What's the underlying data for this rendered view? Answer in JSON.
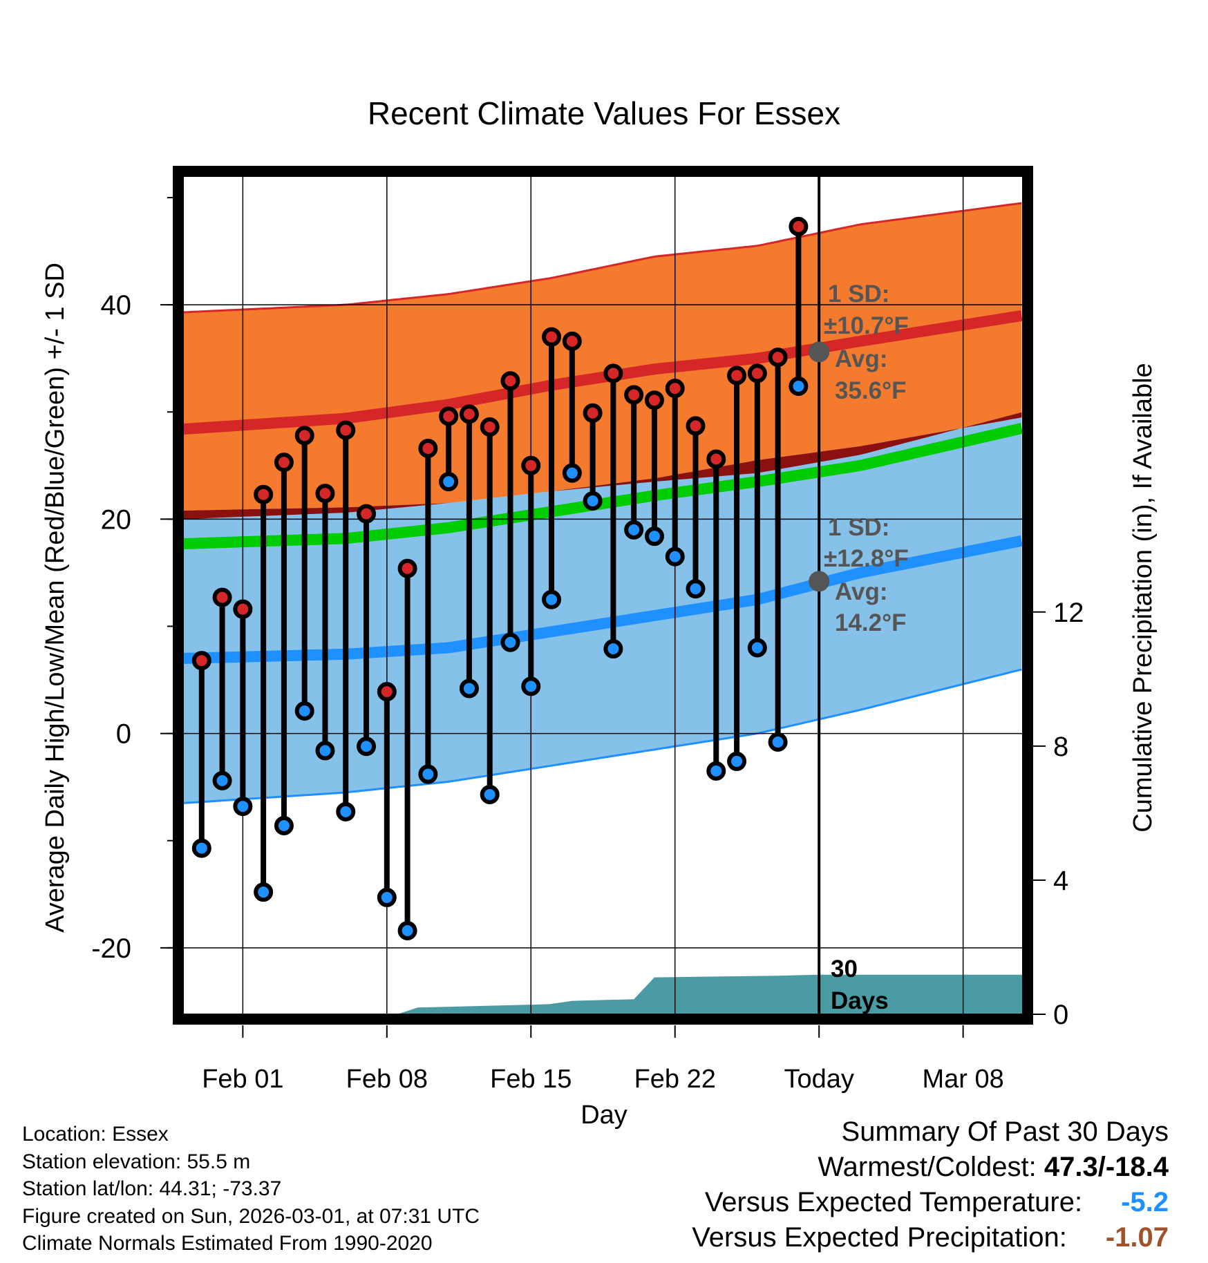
{
  "chart_data": {
    "type": "line",
    "title": "Recent Climate Values For Essex",
    "xlabel": "Day",
    "ylabel": "Average Daily High/Low/Mean (Red/Blue/Green) +/- 1 SD",
    "ylabel_right": "Cumulative Precipitation (in), If Available",
    "x_tick_labels": [
      "Feb 01",
      "Feb 08",
      "Feb 15",
      "Feb 22",
      "Today",
      "Mar 08"
    ],
    "x_tick_days": [
      0,
      7,
      14,
      21,
      28,
      35
    ],
    "xlim": [
      -2.9,
      37.9
    ],
    "ylim": [
      -26.2,
      52.0
    ],
    "y_ticks": [
      -20,
      0,
      20,
      40
    ],
    "y2_ticks": [
      0,
      4,
      8,
      12
    ],
    "y2lim": [
      0,
      25
    ],
    "today_day": 28,
    "today_label": "30 Days",
    "normals": {
      "days": [
        -2.9,
        5,
        10,
        15,
        20,
        25,
        30,
        37.9
      ],
      "high_mean": [
        28.4,
        29.4,
        30.7,
        32.5,
        34.0,
        35.0,
        36.6,
        39.0
      ],
      "high_upper": [
        39.3,
        40.0,
        41.0,
        42.5,
        44.5,
        45.5,
        47.5,
        49.5
      ],
      "high_lower": [
        20.8,
        21.1,
        21.5,
        22.6,
        23.5,
        24.3,
        26.0,
        30.0
      ],
      "low_mean": [
        7.0,
        7.4,
        8.0,
        9.5,
        11.0,
        12.5,
        15.0,
        18.0
      ],
      "low_upper": [
        20.0,
        20.6,
        21.5,
        22.6,
        23.8,
        25.5,
        26.8,
        29.5
      ],
      "low_lower": [
        -6.5,
        -5.5,
        -4.5,
        -3.0,
        -1.5,
        0.0,
        2.2,
        6.0
      ],
      "avg_mean": [
        17.7,
        18.2,
        19.2,
        20.7,
        22.2,
        23.5,
        25.0,
        28.5
      ]
    },
    "series": [
      {
        "name": "Daily High",
        "color": "#d62728",
        "days": [
          -2,
          -1,
          0,
          1,
          2,
          3,
          4,
          5,
          6,
          7,
          8,
          9,
          10,
          11,
          12,
          13,
          14,
          15,
          16,
          17,
          18,
          19,
          20,
          21,
          22,
          23,
          24,
          25,
          26,
          27
        ],
        "values": [
          6.8,
          12.7,
          11.6,
          22.3,
          25.3,
          27.8,
          22.4,
          28.3,
          20.5,
          3.9,
          15.4,
          26.6,
          29.6,
          29.8,
          28.6,
          32.9,
          25.0,
          37.0,
          36.6,
          29.9,
          33.6,
          31.6,
          31.1,
          32.2,
          28.7,
          25.6,
          33.4,
          33.6,
          35.1,
          47.3
        ]
      },
      {
        "name": "Daily Low",
        "color": "#1e90ff",
        "days": [
          -2,
          -1,
          0,
          1,
          2,
          3,
          4,
          5,
          6,
          7,
          8,
          9,
          10,
          11,
          12,
          13,
          14,
          15,
          16,
          17,
          18,
          19,
          20,
          21,
          22,
          23,
          24,
          25,
          26,
          27
        ],
        "values": [
          -10.7,
          -4.4,
          -6.8,
          -14.8,
          -8.6,
          2.1,
          -1.6,
          -7.3,
          -1.2,
          -15.3,
          -18.4,
          -3.8,
          23.5,
          4.2,
          -5.7,
          8.5,
          4.4,
          12.5,
          24.3,
          21.7,
          7.9,
          19.0,
          18.4,
          16.5,
          13.5,
          -3.5,
          -2.6,
          8.0,
          -0.8,
          32.4
        ]
      },
      {
        "name": "Cumulative Precipitation",
        "color": "#4a9ba3",
        "days": [
          -2.9,
          7.5,
          8.5,
          14.9,
          16.0,
          19.0,
          20.0,
          26.0,
          28.0,
          37.9
        ],
        "values": [
          0,
          0,
          0.2,
          0.3,
          0.4,
          0.45,
          1.1,
          1.15,
          1.18,
          1.18
        ]
      }
    ],
    "annotations": {
      "high_sd_label": "1 SD:",
      "high_sd_value": "±10.7°F",
      "high_avg_label": "Avg:",
      "high_avg_value": "35.6°F",
      "high_avg_numeric": 35.6,
      "low_sd_label": "1 SD:",
      "low_sd_value": "±12.8°F",
      "low_avg_label": "Avg:",
      "low_avg_value": "14.2°F",
      "low_avg_numeric": 14.2
    }
  },
  "info": {
    "location": "Location: Essex",
    "elevation": "Station elevation: 55.5 m",
    "latlon": "Station lat/lon: 44.31; -73.37",
    "created": "Figure created on Sun, 2026-03-01, at 07:31 UTC",
    "normals": "Climate Normals Estimated From 1990-2020"
  },
  "summary": {
    "title": "Summary Of Past 30 Days",
    "warm_cold_label": "Warmest/Coldest:",
    "warm_cold_value": "47.3/-18.4",
    "temp_label": "Versus Expected Temperature:",
    "temp_value": "-5.2",
    "temp_color": "#1e90ff",
    "precip_label": "Versus Expected Precipitation:",
    "precip_value": "-1.07",
    "precip_color": "#a0522d"
  },
  "colors": {
    "high_band": "#f47b2e",
    "high_line": "#d62728",
    "low_band": "#85c1e9",
    "low_line": "#1e90ff",
    "overlap": "#8b1111",
    "mean_line": "#00cc00",
    "precip": "#4a9ba3",
    "annotation": "#555555"
  }
}
